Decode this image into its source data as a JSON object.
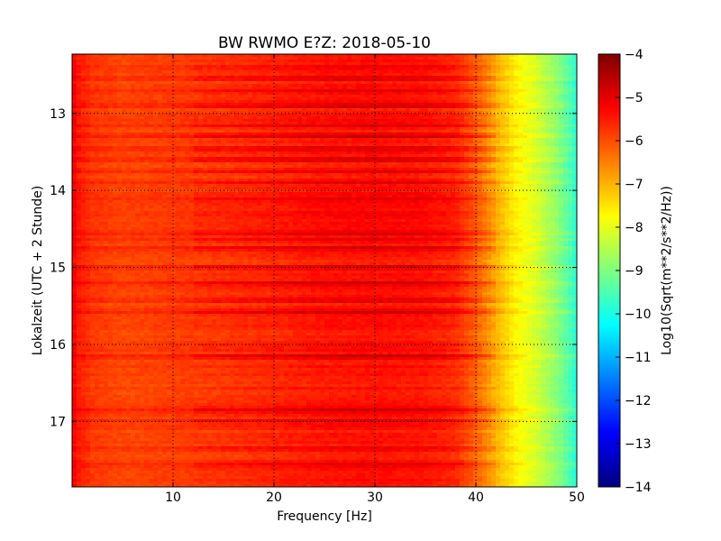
{
  "chart_data": {
    "type": "heatmap",
    "title": "BW RWMO E?Z: 2018-05-10",
    "xlabel": "Frequency [Hz]",
    "ylabel": "Lokalzeit (UTC + 2 Stunde)",
    "xlim": [
      0,
      50
    ],
    "ylim": [
      12.23,
      17.85
    ],
    "y_inverted": true,
    "x_ticks": [
      10,
      20,
      30,
      40,
      50
    ],
    "y_ticks": [
      13,
      14,
      15,
      16,
      17
    ],
    "grid": true,
    "colormap": "jet",
    "colorbar": {
      "label": "Log10(Sqrt(m**2/s**2/Hz))",
      "range": [
        -14,
        -4
      ],
      "ticks": [
        -4,
        -5,
        -6,
        -7,
        -8,
        -9,
        -10,
        -11,
        -12,
        -13,
        -14
      ]
    },
    "frequency_profile": {
      "frequencies_hz": [
        0,
        0.5,
        2,
        5,
        10,
        15,
        20,
        25,
        30,
        35,
        38,
        40,
        42,
        44,
        46,
        48,
        49.5,
        50
      ],
      "log10_amplitude": [
        -5.1,
        -5.5,
        -5.8,
        -5.95,
        -5.85,
        -5.75,
        -5.6,
        -5.45,
        -5.4,
        -5.45,
        -5.65,
        -6.2,
        -7.0,
        -7.7,
        -8.2,
        -8.9,
        -9.6,
        -10.0
      ]
    },
    "stronger_bands_local_time": [
      12.4,
      12.55,
      12.7,
      12.9,
      13.15,
      13.3,
      13.45,
      13.6,
      13.75,
      13.9,
      14.1,
      14.3,
      14.55,
      14.65,
      14.75,
      15.0,
      15.2,
      15.42,
      15.58,
      16.15,
      16.85,
      17.0,
      17.35,
      17.55
    ]
  },
  "colors": {
    "colormap_stops": [
      "#00007f",
      "#0000ff",
      "#007fff",
      "#00ffff",
      "#7fff7f",
      "#ffff00",
      "#ff7f00",
      "#ff0000",
      "#7f0000"
    ]
  }
}
